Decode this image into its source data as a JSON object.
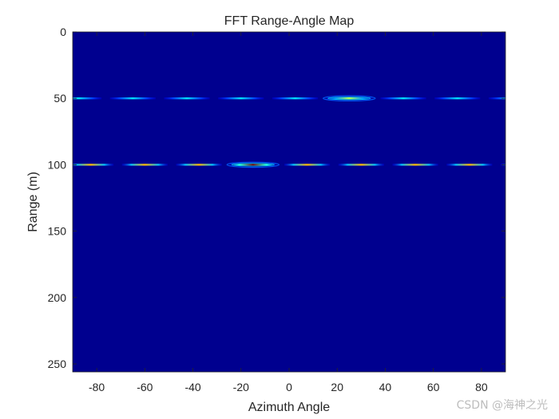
{
  "chart_data": {
    "type": "heatmap",
    "title": "FFT Range-Angle Map",
    "xlabel": "Azimuth Angle",
    "ylabel": "Range (m)",
    "xlim": [
      -90,
      90
    ],
    "ylim": [
      0,
      256
    ],
    "y_reversed": true,
    "xticks": [
      -80,
      -60,
      -40,
      -20,
      0,
      20,
      40,
      60,
      80
    ],
    "yticks": [
      0,
      50,
      100,
      150,
      200,
      250
    ],
    "colormap": "jet",
    "background_color": "#00008F",
    "grid": false,
    "targets": [
      {
        "range": 50,
        "azimuth": 25,
        "peak_intensity": 0.55,
        "sidelobe_intensity": 0.35
      },
      {
        "range": 100,
        "azimuth": -15,
        "peak_intensity": 1.0,
        "sidelobe_intensity": 0.7
      }
    ]
  },
  "watermark": "CSDN @海神之光"
}
